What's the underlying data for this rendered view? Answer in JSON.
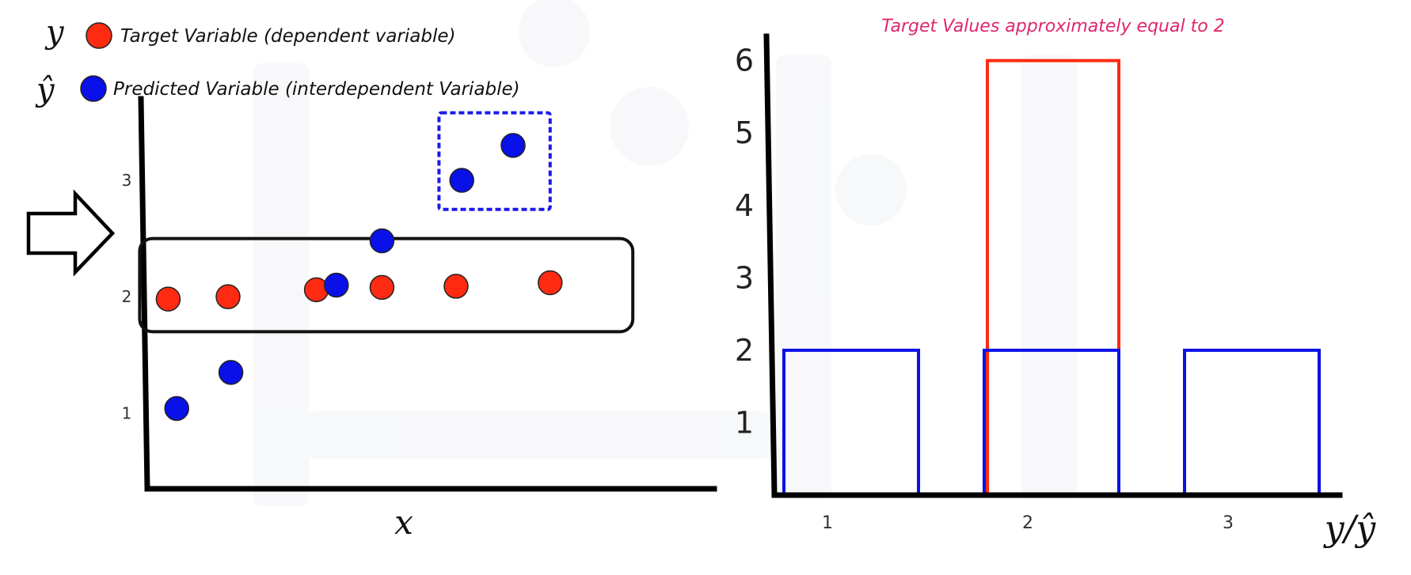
{
  "legend": {
    "items": [
      {
        "symbol": "y",
        "text": "Target Variable (dependent variable)",
        "color": "#ff2a12"
      },
      {
        "symbol": "ŷ",
        "text": "Predicted Variable (interdependent Variable)",
        "color": "#0a10e8"
      }
    ]
  },
  "annotation": {
    "text": "Target Values approximately equal to 2",
    "color": "#e0266e"
  },
  "chart_data": [
    {
      "type": "scatter",
      "title": "",
      "xlabel": "x",
      "ylabel": "",
      "yticks": [
        "1",
        "2",
        "3"
      ],
      "ylim": [
        0.35,
        3.7
      ],
      "xlim": [
        0,
        10
      ],
      "series": [
        {
          "name": "Target Variable (dependent variable)",
          "color": "#ff2a12",
          "points": [
            {
              "x": 0.45,
              "y": 1.98
            },
            {
              "x": 1.5,
              "y": 2.0
            },
            {
              "x": 3.05,
              "y": 2.06
            },
            {
              "x": 4.2,
              "y": 2.08
            },
            {
              "x": 5.5,
              "y": 2.09
            },
            {
              "x": 7.15,
              "y": 2.12
            }
          ]
        },
        {
          "name": "Predicted Variable (interdependent Variable)",
          "color": "#0a10e8",
          "points": [
            {
              "x": 0.6,
              "y": 1.04
            },
            {
              "x": 1.55,
              "y": 1.35
            },
            {
              "x": 3.4,
              "y": 2.1
            },
            {
              "x": 4.2,
              "y": 2.48
            },
            {
              "x": 5.6,
              "y": 3.0
            },
            {
              "x": 6.5,
              "y": 3.3
            }
          ]
        }
      ],
      "highlights": [
        {
          "kind": "target-band",
          "x0": -0.05,
          "x1": 8.6,
          "y0": 1.7,
          "y1": 2.5,
          "color": "#111111"
        },
        {
          "kind": "outlier-box",
          "x0": 5.2,
          "x1": 7.15,
          "y0": 2.75,
          "y1": 3.58,
          "color": "#1a1aef"
        }
      ]
    },
    {
      "type": "bar",
      "title": "",
      "xlabel": "y/ŷ",
      "ylabel": "",
      "categories": [
        "1",
        "2",
        "3"
      ],
      "yticks": [
        "1",
        "2",
        "3",
        "4",
        "5",
        "6"
      ],
      "ylim": [
        0,
        6.4
      ],
      "series": [
        {
          "name": "y",
          "color": "#ff2a12",
          "values": [
            0,
            6,
            0
          ]
        },
        {
          "name": "ŷ",
          "color": "#0a10e8",
          "values": [
            2,
            2,
            2
          ]
        }
      ]
    }
  ]
}
